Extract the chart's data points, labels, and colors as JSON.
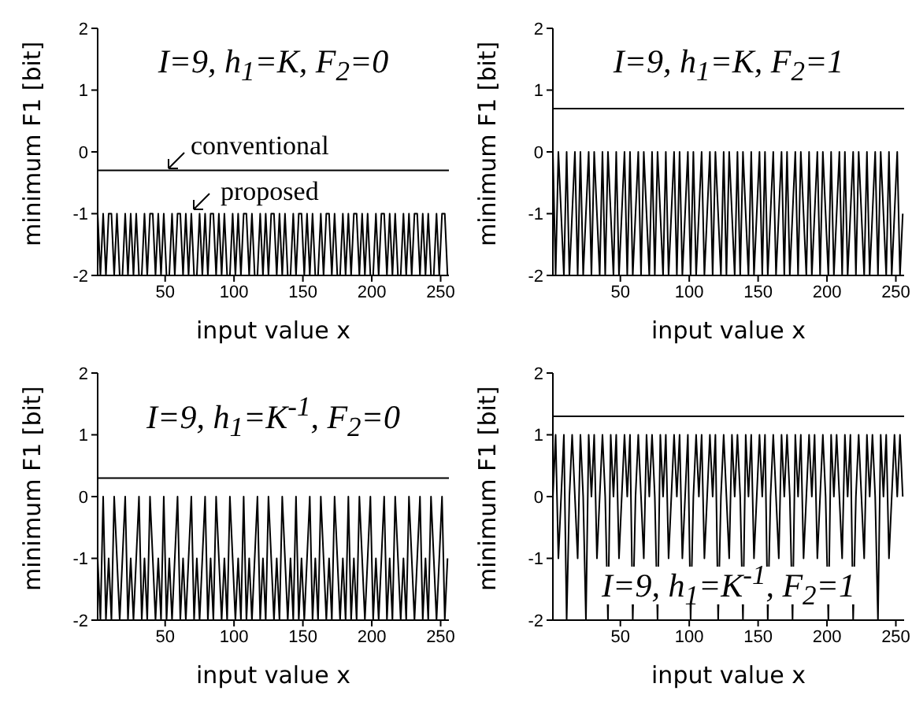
{
  "chart_data": [
    {
      "type": "line",
      "title": "I=9, h$_{1}$=K, F$_{2}$=0",
      "xlabel": "input value x",
      "ylabel": "minimum F1 [bit]",
      "xlim": [
        1,
        256
      ],
      "xticks": [
        50,
        100,
        150,
        200,
        250
      ],
      "ylim": [
        -2,
        2
      ],
      "yticks": [
        -2,
        -1,
        0,
        1,
        2
      ],
      "annotations": [
        "proposed"
      ],
      "ref_lines": [
        {
          "axis": "y",
          "value": -0.3,
          "label": "conventional",
          "color": "#000000"
        }
      ],
      "x": [
        1,
        3,
        5,
        7,
        9,
        11,
        13,
        15,
        17,
        19,
        21,
        23,
        25,
        27,
        29,
        31,
        33,
        35,
        37,
        39,
        41,
        43,
        45,
        47,
        49,
        51,
        53,
        55,
        57,
        59,
        61,
        63,
        65,
        67,
        69,
        71,
        73,
        75,
        77,
        79,
        81,
        83,
        85,
        87,
        89,
        91,
        93,
        95,
        97,
        99,
        101,
        103,
        105,
        107,
        109,
        111,
        113,
        115,
        117,
        119,
        121,
        123,
        125,
        127,
        129,
        131,
        133,
        135,
        137,
        139,
        141,
        143,
        145,
        147,
        149,
        151,
        153,
        155,
        157,
        159,
        161,
        163,
        165,
        167,
        169,
        171,
        173,
        175,
        177,
        179,
        181,
        183,
        185,
        187,
        189,
        191,
        193,
        195,
        197,
        199,
        201,
        203,
        205,
        207,
        209,
        211,
        213,
        215,
        217,
        219,
        221,
        223,
        225,
        227,
        229,
        231,
        233,
        235,
        237,
        239,
        241,
        243,
        245,
        247,
        249,
        251,
        253,
        255
      ],
      "series": [
        {
          "color": "#000000",
          "values": [
            -1,
            -2,
            -1,
            -2,
            -1,
            -1,
            -2,
            -1,
            -2,
            -2,
            -1,
            -2,
            -1,
            -2,
            -1,
            -2,
            -2,
            -1,
            -2,
            -1,
            -1,
            -2,
            -1,
            -2,
            -1,
            -2,
            -2,
            -1,
            -2,
            -1,
            -1,
            -2,
            -1,
            -2,
            -1,
            -2,
            -2,
            -1,
            -2,
            -1,
            -2,
            -1,
            -1,
            -2,
            -1,
            -2,
            -1,
            -2,
            -2,
            -1,
            -2,
            -1,
            -2,
            -1,
            -1,
            -2,
            -1,
            -2,
            -2,
            -1,
            -2,
            -1,
            -2,
            -1,
            -1,
            -2,
            -1,
            -2,
            -1,
            -2,
            -2,
            -1,
            -2,
            -1,
            -1,
            -2,
            -1,
            -2,
            -1,
            -2,
            -2,
            -1,
            -2,
            -1,
            -1,
            -2,
            -1,
            -2,
            -2,
            -1,
            -2,
            -1,
            -2,
            -1,
            -1,
            -2,
            -1,
            -2,
            -1,
            -2,
            -2,
            -1,
            -2,
            -1,
            -1,
            -2,
            -1,
            -2,
            -1,
            -2,
            -2,
            -1,
            -2,
            -1,
            -2,
            -1,
            -1,
            -2,
            -1,
            -2,
            -1,
            -2,
            -2,
            -1,
            -2,
            -1,
            -1,
            -2
          ]
        }
      ]
    },
    {
      "type": "line",
      "title": "I=9, h$_{1}$=K, F$_{2}$=1",
      "xlabel": "input value x",
      "ylabel": "minimum F1 [bit]",
      "xlim": [
        1,
        256
      ],
      "xticks": [
        50,
        100,
        150,
        200,
        250
      ],
      "ylim": [
        -2,
        2
      ],
      "yticks": [
        -2,
        -1,
        0,
        1,
        2
      ],
      "ref_lines": [
        {
          "axis": "y",
          "value": 0.7,
          "color": "#000000"
        }
      ],
      "x": [
        1,
        3,
        5,
        7,
        9,
        11,
        13,
        15,
        17,
        19,
        21,
        23,
        25,
        27,
        29,
        31,
        33,
        35,
        37,
        39,
        41,
        43,
        45,
        47,
        49,
        51,
        53,
        55,
        57,
        59,
        61,
        63,
        65,
        67,
        69,
        71,
        73,
        75,
        77,
        79,
        81,
        83,
        85,
        87,
        89,
        91,
        93,
        95,
        97,
        99,
        101,
        103,
        105,
        107,
        109,
        111,
        113,
        115,
        117,
        119,
        121,
        123,
        125,
        127,
        129,
        131,
        133,
        135,
        137,
        139,
        141,
        143,
        145,
        147,
        149,
        151,
        153,
        155,
        157,
        159,
        161,
        163,
        165,
        167,
        169,
        171,
        173,
        175,
        177,
        179,
        181,
        183,
        185,
        187,
        189,
        191,
        193,
        195,
        197,
        199,
        201,
        203,
        205,
        207,
        209,
        211,
        213,
        215,
        217,
        219,
        221,
        223,
        225,
        227,
        229,
        231,
        233,
        235,
        237,
        239,
        241,
        243,
        245,
        247,
        249,
        251,
        253,
        255
      ],
      "series": [
        {
          "color": "#000000",
          "values": [
            0,
            -2,
            0,
            -1,
            -2,
            0,
            -2,
            -1,
            0,
            -2,
            0,
            -2,
            -1,
            0,
            -2,
            0,
            -1,
            -2,
            0,
            -2,
            0,
            -1,
            -2,
            0,
            -2,
            -1,
            0,
            -2,
            0,
            -2,
            -1,
            0,
            -2,
            0,
            -1,
            -2,
            0,
            -2,
            0,
            -1,
            -2,
            0,
            -2,
            -1,
            0,
            -2,
            0,
            -2,
            -1,
            0,
            -2,
            0,
            -2,
            -1,
            0,
            -2,
            -1,
            0,
            -2,
            0,
            -1,
            -2,
            0,
            -2,
            0,
            -1,
            -2,
            0,
            -2,
            0,
            -1,
            -2,
            0,
            -2,
            -1,
            0,
            -2,
            0,
            -2,
            -1,
            0,
            -2,
            -1,
            0,
            -2,
            0,
            -2,
            -1,
            0,
            -2,
            0,
            -1,
            -2,
            0,
            -2,
            -1,
            0,
            -2,
            0,
            -1,
            -2,
            0,
            -2,
            -1,
            0,
            -2,
            0,
            -2,
            -1,
            0,
            -2,
            0,
            -1,
            -2,
            0,
            -2,
            -1,
            0,
            -2,
            0,
            -1,
            -2,
            0,
            -2,
            -1,
            0,
            -2,
            -1
          ]
        }
      ]
    },
    {
      "type": "line",
      "title": "I=9, h$_{1}$=K$^{-1}$, F$_{2}$=0",
      "xlabel": "input value x",
      "ylabel": "minimum F1 [bit]",
      "xlim": [
        1,
        256
      ],
      "xticks": [
        50,
        100,
        150,
        200,
        250
      ],
      "ylim": [
        -2,
        2
      ],
      "yticks": [
        -2,
        -1,
        0,
        1,
        2
      ],
      "ref_lines": [
        {
          "axis": "y",
          "value": 0.3,
          "color": "#000000"
        }
      ],
      "x": [
        1,
        3,
        5,
        7,
        9,
        11,
        13,
        15,
        17,
        19,
        21,
        23,
        25,
        27,
        29,
        31,
        33,
        35,
        37,
        39,
        41,
        43,
        45,
        47,
        49,
        51,
        53,
        55,
        57,
        59,
        61,
        63,
        65,
        67,
        69,
        71,
        73,
        75,
        77,
        79,
        81,
        83,
        85,
        87,
        89,
        91,
        93,
        95,
        97,
        99,
        101,
        103,
        105,
        107,
        109,
        111,
        113,
        115,
        117,
        119,
        121,
        123,
        125,
        127,
        129,
        131,
        133,
        135,
        137,
        139,
        141,
        143,
        145,
        147,
        149,
        151,
        153,
        155,
        157,
        159,
        161,
        163,
        165,
        167,
        169,
        171,
        173,
        175,
        177,
        179,
        181,
        183,
        185,
        187,
        189,
        191,
        193,
        195,
        197,
        199,
        201,
        203,
        205,
        207,
        209,
        211,
        213,
        215,
        217,
        219,
        221,
        223,
        225,
        227,
        229,
        231,
        233,
        235,
        237,
        239,
        241,
        243,
        245,
        247,
        249,
        251,
        253,
        255
      ],
      "series": [
        {
          "color": "#000000",
          "values": [
            -1,
            -2,
            0,
            -2,
            -1,
            -2,
            0,
            -1,
            -2,
            -1,
            0,
            -2,
            -1,
            -2,
            -1,
            0,
            -2,
            -1,
            -2,
            0,
            -1,
            -2,
            -1,
            -2,
            0,
            -2,
            -1,
            -2,
            -1,
            0,
            -2,
            -1,
            -2,
            -1,
            0,
            -2,
            -1,
            -2,
            -1,
            0,
            -2,
            -1,
            -2,
            0,
            -1,
            -2,
            -1,
            -2,
            0,
            -1,
            -2,
            -1,
            -2,
            0,
            -2,
            -1,
            -2,
            -1,
            0,
            -2,
            -1,
            -2,
            0,
            -1,
            -2,
            -1,
            -2,
            0,
            -1,
            -2,
            -1,
            -2,
            0,
            -2,
            -1,
            -2,
            -1,
            0,
            -2,
            -1,
            -2,
            0,
            -1,
            -2,
            -1,
            -2,
            0,
            -1,
            -2,
            -1,
            -2,
            0,
            -2,
            -1,
            -2,
            0,
            -1,
            -2,
            -1,
            0,
            -2,
            -1,
            -2,
            -1,
            0,
            -2,
            -1,
            -2,
            0,
            -1,
            -2,
            -1,
            -2,
            0,
            -1,
            -2,
            -1,
            0,
            -2,
            -1,
            -2,
            0,
            -1,
            -2,
            -1,
            0,
            -2,
            -1
          ]
        }
      ]
    },
    {
      "type": "line",
      "title": "I=9, h$_{1}$=K$^{-1}$, F$_{2}$=1",
      "xlabel": "input value x",
      "ylabel": "minimum F1 [bit]",
      "xlim": [
        1,
        256
      ],
      "xticks": [
        50,
        100,
        150,
        200,
        250
      ],
      "ylim": [
        -2,
        2
      ],
      "yticks": [
        -2,
        -1,
        0,
        1,
        2
      ],
      "ref_lines": [
        {
          "axis": "y",
          "value": 1.3,
          "color": "#000000"
        }
      ],
      "x": [
        1,
        3,
        5,
        7,
        9,
        11,
        13,
        15,
        17,
        19,
        21,
        23,
        25,
        27,
        29,
        31,
        33,
        35,
        37,
        39,
        41,
        43,
        45,
        47,
        49,
        51,
        53,
        55,
        57,
        59,
        61,
        63,
        65,
        67,
        69,
        71,
        73,
        75,
        77,
        79,
        81,
        83,
        85,
        87,
        89,
        91,
        93,
        95,
        97,
        99,
        101,
        103,
        105,
        107,
        109,
        111,
        113,
        115,
        117,
        119,
        121,
        123,
        125,
        127,
        129,
        131,
        133,
        135,
        137,
        139,
        141,
        143,
        145,
        147,
        149,
        151,
        153,
        155,
        157,
        159,
        161,
        163,
        165,
        167,
        169,
        171,
        173,
        175,
        177,
        179,
        181,
        183,
        185,
        187,
        189,
        191,
        193,
        195,
        197,
        199,
        201,
        203,
        205,
        207,
        209,
        211,
        213,
        215,
        217,
        219,
        221,
        223,
        225,
        227,
        229,
        231,
        233,
        235,
        237,
        239,
        241,
        243,
        245,
        247,
        249,
        251,
        253,
        255
      ],
      "series": [
        {
          "color": "#000000",
          "values": [
            0,
            1,
            -1,
            0,
            1,
            -2,
            0,
            1,
            0,
            -1,
            1,
            0,
            -2,
            1,
            0,
            1,
            -1,
            0,
            1,
            0,
            -2,
            1,
            0,
            1,
            -1,
            0,
            1,
            0,
            1,
            -2,
            0,
            1,
            0,
            -1,
            1,
            0,
            1,
            0,
            -2,
            1,
            0,
            1,
            -1,
            0,
            1,
            0,
            1,
            -1,
            0,
            1,
            -2,
            0,
            1,
            0,
            1,
            -1,
            0,
            1,
            0,
            1,
            -2,
            0,
            1,
            0,
            -1,
            1,
            0,
            1,
            0,
            -2,
            1,
            0,
            1,
            -1,
            0,
            1,
            0,
            1,
            -2,
            0,
            1,
            0,
            -1,
            1,
            0,
            1,
            0,
            -2,
            1,
            0,
            1,
            -1,
            0,
            1,
            0,
            1,
            -1,
            0,
            1,
            0,
            -2,
            1,
            0,
            1,
            0,
            -1,
            1,
            0,
            1,
            -2,
            0,
            1,
            0,
            -1,
            1,
            0,
            1,
            0,
            -2,
            1,
            0,
            1,
            -1,
            0,
            1,
            0,
            1,
            0
          ]
        }
      ]
    }
  ]
}
